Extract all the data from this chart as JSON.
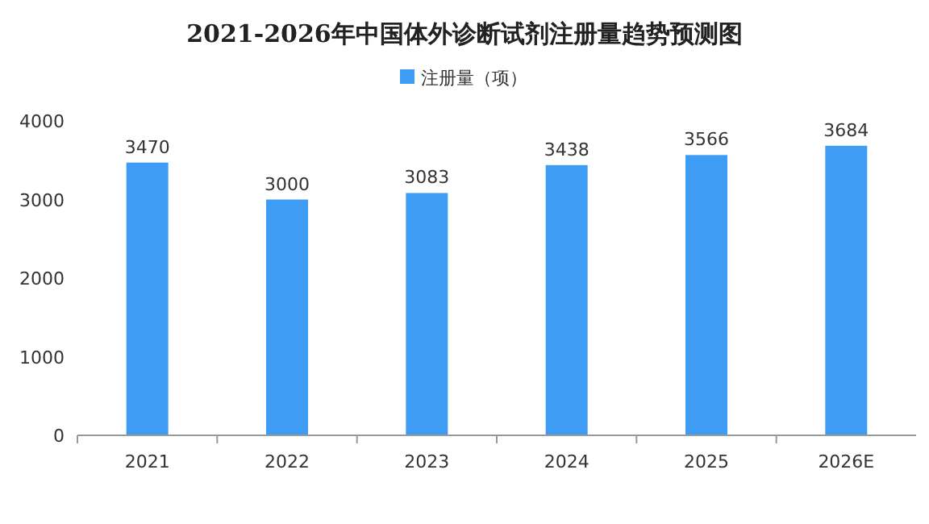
{
  "chart_data": {
    "type": "bar",
    "title": "2021-2026年中国体外诊断试剂注册量趋势预测图",
    "categories": [
      "2021",
      "2022",
      "2023",
      "2024",
      "2025",
      "2026E"
    ],
    "series": [
      {
        "name": "注册量（项）",
        "color": "#3e9cf4",
        "values": [
          3470,
          3000,
          3083,
          3438,
          3566,
          3684
        ]
      }
    ],
    "ylim": [
      0,
      4000
    ],
    "yticks": [
      0,
      1000,
      2000,
      3000,
      4000
    ],
    "grid": false,
    "legend": "top",
    "data_labels": true
  }
}
